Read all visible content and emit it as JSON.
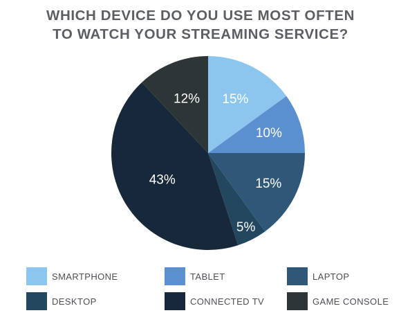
{
  "chart_data": {
    "type": "pie",
    "title_lines": [
      "WHICH DEVICE DO YOU USE MOST OFTEN",
      "TO WATCH YOUR STREAMING SERVICE?"
    ],
    "slices": [
      {
        "label": "SMARTPHONE",
        "value": 15,
        "display": "15%",
        "color": "#8cc6ee"
      },
      {
        "label": "TABLET",
        "value": 10,
        "display": "10%",
        "color": "#5b90d0"
      },
      {
        "label": "LAPTOP",
        "value": 15,
        "display": "15%",
        "color": "#2f5878"
      },
      {
        "label": "DESKTOP",
        "value": 5,
        "display": "5%",
        "color": "#23475e"
      },
      {
        "label": "CONNECTED TV",
        "value": 43,
        "display": "43%",
        "color": "#17283a"
      },
      {
        "label": "GAME CONSOLE",
        "value": 12,
        "display": "12%",
        "color": "#2e3537"
      }
    ],
    "legend_placement": "bottom"
  }
}
